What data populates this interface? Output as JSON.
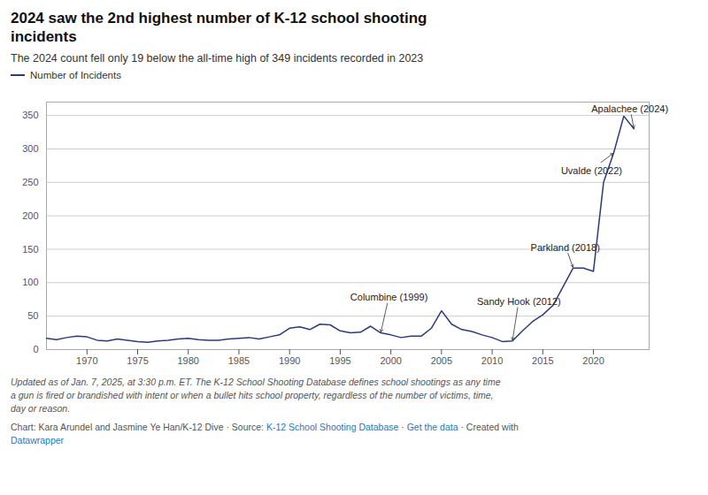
{
  "chart_data": {
    "type": "line",
    "title": "2024 saw the 2nd highest number of K-12 school shooting\nincidents",
    "subtitle": "The 2024 count fell only 19 below the all-time high of 349 incidents recorded in 2023",
    "x": [
      1966,
      1967,
      1968,
      1969,
      1970,
      1971,
      1972,
      1973,
      1974,
      1975,
      1976,
      1977,
      1978,
      1979,
      1980,
      1981,
      1982,
      1983,
      1984,
      1985,
      1986,
      1987,
      1988,
      1989,
      1990,
      1991,
      1992,
      1993,
      1994,
      1995,
      1996,
      1997,
      1998,
      1999,
      2000,
      2001,
      2002,
      2003,
      2004,
      2005,
      2006,
      2007,
      2008,
      2009,
      2010,
      2011,
      2012,
      2013,
      2014,
      2015,
      2016,
      2017,
      2018,
      2019,
      2020,
      2021,
      2022,
      2023,
      2024
    ],
    "series": [
      {
        "name": "Number of Incidents",
        "color": "#2d3a7a",
        "values": [
          17,
          15,
          18,
          20,
          19,
          14,
          13,
          16,
          14,
          12,
          11,
          13,
          14,
          16,
          17,
          15,
          14,
          14,
          16,
          17,
          18,
          16,
          19,
          22,
          32,
          34,
          30,
          38,
          37,
          28,
          25,
          26,
          35,
          25,
          22,
          18,
          20,
          20,
          32,
          58,
          38,
          30,
          27,
          22,
          18,
          12,
          13,
          28,
          42,
          52,
          66,
          94,
          122,
          122,
          117,
          250,
          294,
          349,
          330
        ]
      }
    ],
    "annotations": [
      {
        "text": "Columbine (1999)",
        "x": 1999,
        "y": 25,
        "text_x": 1996.0,
        "text_y": 73
      },
      {
        "text": "Sandy Hook (2012)",
        "x": 2012,
        "y": 13,
        "text_x": 2008.5,
        "text_y": 67
      },
      {
        "text": "Parkland (2018)",
        "x": 2018,
        "y": 122,
        "text_x": 2013.8,
        "text_y": 148
      },
      {
        "text": "Uvalde (2022)",
        "x": 2022,
        "y": 294,
        "text_x": 2016.8,
        "text_y": 262
      },
      {
        "text": "Apalachee (2024)",
        "x": 2024,
        "y": 330,
        "text_x": 2019.8,
        "text_y": 355
      }
    ],
    "footnote": "Updated as of Jan. 7, 2025, at 3:30 p.m. ET. The K-12 School Shooting Database defines school shootings as any time\na gun is fired or brandished with intent or when a bullet hits school property, regardless of the number of victims, time,\nday or reason.",
    "credit": [
      [
        {
          "text": "Chart: Kara Arundel and Jasmine Ye Han/K-12 Dive · Source: ",
          "link": false
        },
        {
          "text": "K-12 School Shooting Database",
          "link": true
        },
        {
          "text": " · ",
          "link": false
        },
        {
          "text": "Get the data",
          "link": true
        },
        {
          "text": " · Created with",
          "link": false
        }
      ],
      [
        {
          "text": "Datawrapper",
          "link": true
        }
      ]
    ],
    "credit_link_color": "#1a7abf",
    "xlim": [
      1966,
      2025.5
    ],
    "ylim": [
      0,
      370
    ],
    "xticks": [
      1970,
      1975,
      1980,
      1985,
      1990,
      1995,
      2000,
      2005,
      2010,
      2015,
      2020
    ],
    "yticks": [
      0,
      50,
      100,
      150,
      200,
      250,
      300,
      350
    ],
    "grid": "y"
  }
}
